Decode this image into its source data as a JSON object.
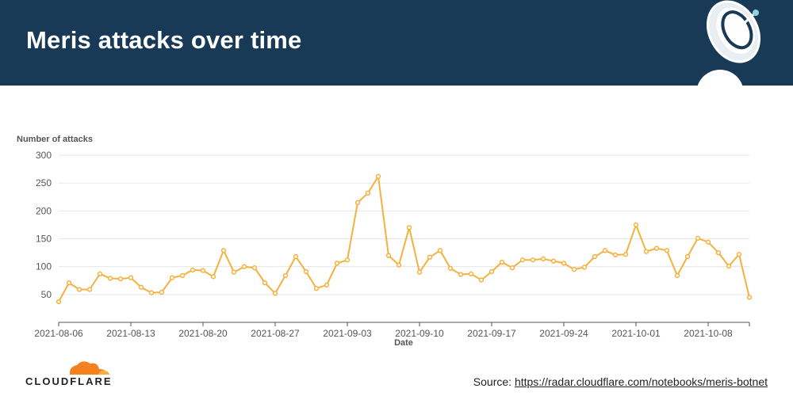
{
  "header": {
    "title": "Meris attacks over time"
  },
  "footer": {
    "brand": "CLOUDFLARE",
    "source_label": "Source: ",
    "source_link": "https://radar.cloudflare.com/notebooks/meris-botnet"
  },
  "colors": {
    "header_bg": "#183a56",
    "line": "#f4b13e",
    "brand_orange": "#f48120",
    "grid": "#e6e6e6"
  },
  "icons": [
    "satellite-dish-icon",
    "cloudflare-cloud-icon"
  ],
  "chart_data": {
    "type": "line",
    "title": "",
    "ylabel": "Number of attacks",
    "xlabel": "Date",
    "ylim": [
      0,
      300
    ],
    "yticks": [
      50,
      100,
      150,
      200,
      250,
      300
    ],
    "xticks": [
      "2021-08-06",
      "2021-08-13",
      "2021-08-20",
      "2021-08-27",
      "2021-09-03",
      "2021-09-10",
      "2021-09-17",
      "2021-09-24",
      "2021-10-01",
      "2021-10-08"
    ],
    "grid": true,
    "x_start": "2021-08-06",
    "x_end": "2021-10-12",
    "values": [
      37,
      71,
      59,
      59,
      87,
      79,
      78,
      80,
      63,
      53,
      54,
      80,
      84,
      94,
      93,
      82,
      129,
      90,
      100,
      98,
      71,
      52,
      84,
      118,
      91,
      61,
      67,
      106,
      112,
      215,
      232,
      262,
      120,
      103,
      170,
      90,
      117,
      129,
      97,
      86,
      87,
      76,
      91,
      108,
      98,
      112,
      112,
      114,
      110,
      106,
      95,
      99,
      118,
      129,
      121,
      122,
      175,
      127,
      133,
      129,
      84,
      118,
      151,
      144,
      125,
      101,
      122,
      45
    ]
  }
}
